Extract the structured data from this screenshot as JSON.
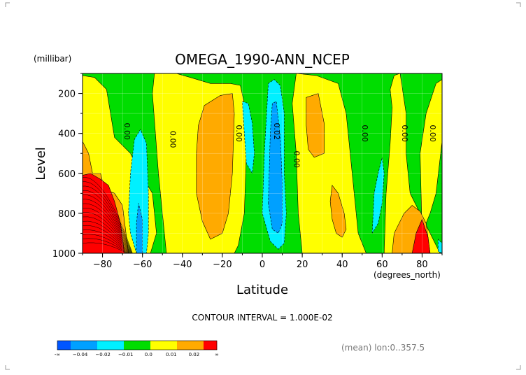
{
  "chart_data": {
    "type": "heatmap",
    "subtype": "filled-contour",
    "title": "OMEGA_1990-ANN_NCEP",
    "xlabel": "Latitude",
    "xunits": "(degrees_north)",
    "ylabel": "Level",
    "yunits": "(millibar)",
    "xlim": [
      -90,
      90
    ],
    "ylim": [
      1000,
      100
    ],
    "y_inverted": true,
    "xticks": [
      "-80",
      "-60",
      "-40",
      "-20",
      "0",
      "20",
      "40",
      "60",
      "80"
    ],
    "yticks": [
      "200",
      "400",
      "600",
      "800",
      "1000"
    ],
    "grid": true,
    "contour_interval_text": "CONTOUR INTERVAL = 1.000E-02",
    "contour_labels": [
      {
        "text": "0.00",
        "lat": -69,
        "lev": 390
      },
      {
        "text": "0.00",
        "lat": -46,
        "lev": 430
      },
      {
        "text": "0.00",
        "lat": -13,
        "lev": 400
      },
      {
        "text": "0.02",
        "lat": 6,
        "lev": 390
      },
      {
        "text": "0.00",
        "lat": 16,
        "lev": 530
      },
      {
        "text": "0.00",
        "lat": 50,
        "lev": 400
      },
      {
        "text": "0.00",
        "lat": 70,
        "lev": 400
      },
      {
        "text": "0.00",
        "lat": 84,
        "lev": 400
      }
    ],
    "color_scale": {
      "bins": [
        {
          "range": "< -0.04",
          "color": "#0055ff"
        },
        {
          "range": "-0.04 to -0.02",
          "color": "#00a0ff"
        },
        {
          "range": "-0.02 to -0.01",
          "color": "#00f0ff"
        },
        {
          "range": "-0.01 to 0.0",
          "color": "#00dd00"
        },
        {
          "range": "0.0 to 0.01",
          "color": "#ffff00"
        },
        {
          "range": "0.01 to 0.02",
          "color": "#ffaa00"
        },
        {
          "range": "> 0.02",
          "color": "#ff0000"
        }
      ],
      "tick_labels": [
        "-∞",
        "−0.04",
        "−0.02",
        "−0.01",
        "0.0",
        "0.01",
        "0.02",
        "∞"
      ]
    },
    "regions": [
      {
        "level": "0.0 to 0.01",
        "color": "#ffff00",
        "polygons": [
          [
            [
              -90,
              110
            ],
            [
              -84,
              120
            ],
            [
              -78,
              180
            ],
            [
              -76,
              300
            ],
            [
              -74,
              420
            ],
            [
              -66,
              500
            ],
            [
              -61,
              600
            ],
            [
              -55,
              700
            ],
            [
              -53,
              900
            ],
            [
              -56,
              1000
            ],
            [
              -90,
              1000
            ]
          ],
          [
            [
              -54,
              100
            ],
            [
              -43,
              100
            ],
            [
              -36,
              120
            ],
            [
              -26,
              150
            ],
            [
              -16,
              150
            ],
            [
              -11,
              160
            ],
            [
              -9,
              250
            ],
            [
              -8,
              500
            ],
            [
              -9,
              800
            ],
            [
              -12,
              960
            ],
            [
              -14,
              1000
            ],
            [
              -48,
              1000
            ],
            [
              -52,
              600
            ],
            [
              -55,
              200
            ]
          ],
          [
            [
              17,
              100
            ],
            [
              27,
              110
            ],
            [
              38,
              150
            ],
            [
              42,
              300
            ],
            [
              45,
              600
            ],
            [
              48,
              900
            ],
            [
              52,
              1000
            ],
            [
              20,
              1000
            ],
            [
              18,
              800
            ],
            [
              17,
              500
            ],
            [
              15,
              250
            ]
          ],
          [
            [
              61,
              1000
            ],
            [
              62,
              700
            ],
            [
              64,
              450
            ],
            [
              65,
              270
            ],
            [
              64,
              180
            ],
            [
              66,
              110
            ],
            [
              69,
              100
            ],
            [
              72,
              300
            ],
            [
              72,
              500
            ],
            [
              74,
              700
            ],
            [
              84,
              900
            ],
            [
              89,
              1000
            ]
          ],
          [
            [
              80,
              900
            ],
            [
              79,
              500
            ],
            [
              82,
              300
            ],
            [
              87,
              150
            ],
            [
              90,
              130
            ],
            [
              90,
              440
            ],
            [
              87,
              700
            ],
            [
              84,
              800
            ]
          ]
        ]
      },
      {
        "level": "0.01 to 0.02",
        "color": "#ffaa00",
        "polygons": [
          [
            [
              -90,
              440
            ],
            [
              -87,
              500
            ],
            [
              -85,
              600
            ],
            [
              -81,
              600
            ],
            [
              -79,
              680
            ],
            [
              -74,
              700
            ],
            [
              -70,
              760
            ],
            [
              -67,
              1000
            ],
            [
              -90,
              1000
            ]
          ],
          [
            [
              -32,
              360
            ],
            [
              -29,
              260
            ],
            [
              -21,
              210
            ],
            [
              -15,
              200
            ],
            [
              -14,
              300
            ],
            [
              -15,
              600
            ],
            [
              -17,
              800
            ],
            [
              -20,
              900
            ],
            [
              -26,
              930
            ],
            [
              -30,
              840
            ],
            [
              -33,
              700
            ],
            [
              -33,
              500
            ]
          ],
          [
            [
              22,
              220
            ],
            [
              28,
              200
            ],
            [
              31,
              350
            ],
            [
              31,
              500
            ],
            [
              26,
              520
            ],
            [
              23,
              480
            ],
            [
              22,
              360
            ]
          ],
          [
            [
              35,
              660
            ],
            [
              38,
              700
            ],
            [
              41,
              800
            ],
            [
              42,
              880
            ],
            [
              40,
              920
            ],
            [
              37,
              900
            ],
            [
              35,
              830
            ],
            [
              34,
              740
            ]
          ],
          [
            [
              65,
              1000
            ],
            [
              66,
              900
            ],
            [
              71,
              800
            ],
            [
              75,
              760
            ],
            [
              79,
              790
            ],
            [
              82,
              850
            ],
            [
              84,
              1000
            ]
          ]
        ]
      },
      {
        "level": "> 0.02",
        "color": "#ff0000",
        "polygons": [
          [
            [
              -90,
              610
            ],
            [
              -86,
              600
            ],
            [
              -81,
              630
            ],
            [
              -77,
              660
            ],
            [
              -74,
              740
            ],
            [
              -71,
              850
            ],
            [
              -69,
              1000
            ],
            [
              -90,
              1000
            ]
          ],
          [
            [
              75,
              1000
            ],
            [
              77,
              900
            ],
            [
              80,
              830
            ],
            [
              83,
              920
            ],
            [
              84,
              1000
            ]
          ]
        ]
      },
      {
        "level": "-0.02 to -0.01",
        "color": "#00f0ff",
        "polygons": [
          [
            [
              -67,
              800
            ],
            [
              -66,
              600
            ],
            [
              -64,
              430
            ],
            [
              -61,
              380
            ],
            [
              -58,
              450
            ],
            [
              -57,
              700
            ],
            [
              -57,
              900
            ],
            [
              -58,
              1000
            ],
            [
              -63,
              1000
            ],
            [
              -66,
              900
            ]
          ],
          [
            [
              -10,
              240
            ],
            [
              -7,
              250
            ],
            [
              -5,
              350
            ],
            [
              -4,
              500
            ],
            [
              -5,
              600
            ],
            [
              -8,
              550
            ],
            [
              -9,
              400
            ]
          ],
          [
            [
              0,
              800
            ],
            [
              1,
              500
            ],
            [
              3,
              150
            ],
            [
              6,
              130
            ],
            [
              9,
              160
            ],
            [
              11,
              300
            ],
            [
              11,
              600
            ],
            [
              12,
              800
            ],
            [
              11,
              950
            ],
            [
              8,
              980
            ],
            [
              4,
              940
            ]
          ],
          [
            [
              55,
              900
            ],
            [
              56,
              700
            ],
            [
              58,
              600
            ],
            [
              60,
              520
            ],
            [
              61,
              600
            ],
            [
              60,
              750
            ],
            [
              58,
              850
            ]
          ],
          [
            [
              88,
              990
            ],
            [
              88,
              930
            ],
            [
              90,
              950
            ],
            [
              90,
              1000
            ]
          ]
        ]
      },
      {
        "level": "-0.04 to -0.02",
        "color": "#00a0ff",
        "polygons": [
          [
            [
              -63,
              1000
            ],
            [
              -63,
              850
            ],
            [
              -62,
              750
            ],
            [
              -60,
              830
            ],
            [
              -60,
              1000
            ]
          ],
          [
            [
              3,
              750
            ],
            [
              4,
              400
            ],
            [
              5,
              250
            ],
            [
              7,
              240
            ],
            [
              9,
              420
            ],
            [
              10,
              650
            ],
            [
              10,
              850
            ],
            [
              8,
              900
            ],
            [
              5,
              880
            ]
          ]
        ]
      }
    ],
    "dense_contour_region": {
      "lat_range": [
        -90,
        -66
      ],
      "lev_range": [
        620,
        1000
      ],
      "note": "closely spaced contour lines in the red region"
    },
    "annotation": "(mean) lon:0..357.5"
  }
}
